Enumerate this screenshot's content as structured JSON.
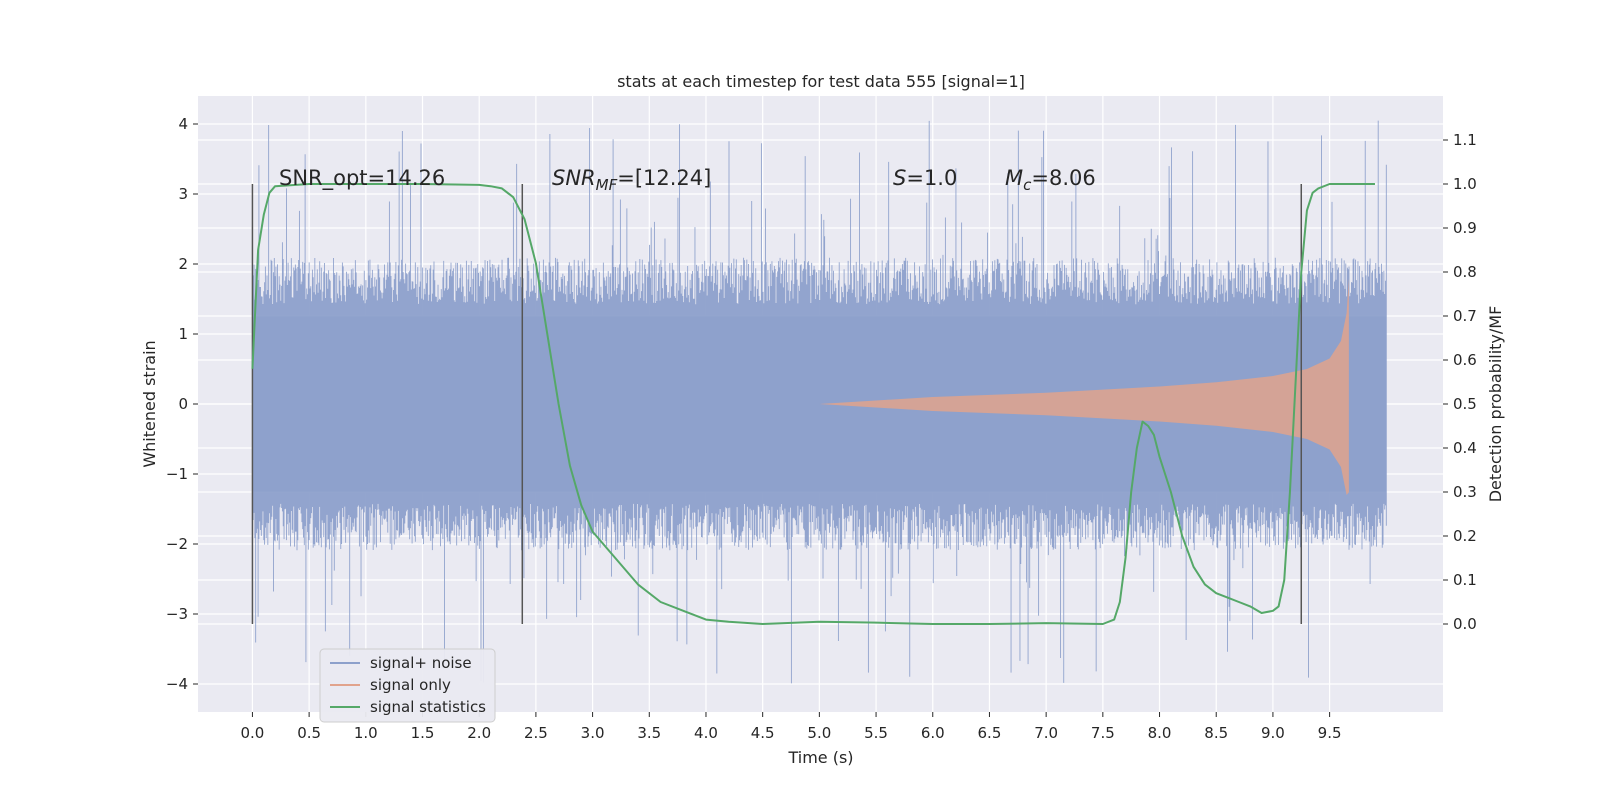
{
  "chart_data": {
    "type": "line",
    "title": "stats at each timestep for test data 555 [signal=1]",
    "xlabel": "Time (s)",
    "ylabel_left": "Whitened strain",
    "ylabel_right": "Detection probability/MF",
    "xlim": [
      -0.48,
      10.5
    ],
    "ylim_left": [
      -4.4,
      4.4
    ],
    "ylim_right": [
      -0.2,
      1.2
    ],
    "xticks": [
      "0.0",
      "0.5",
      "1.0",
      "1.5",
      "2.0",
      "2.5",
      "3.0",
      "3.5",
      "4.0",
      "4.5",
      "5.0",
      "5.5",
      "6.0",
      "6.5",
      "7.0",
      "7.5",
      "8.0",
      "8.5",
      "9.0",
      "9.5"
    ],
    "yticks_left": [
      "4",
      "3",
      "2",
      "1",
      "0",
      "−1",
      "−2",
      "−3",
      "−4"
    ],
    "yticks_right": [
      "1.1",
      "1.0",
      "0.9",
      "0.8",
      "0.7",
      "0.6",
      "0.5",
      "0.4",
      "0.3",
      "0.2",
      "0.1",
      "0.0"
    ],
    "background": "#eaeaf2",
    "grid": true,
    "legend_position": "lower-left",
    "annotations": {
      "snr_opt": "SNR_opt=14.26",
      "snr_mf_base": "SNR",
      "snr_mf_sub": "MF",
      "snr_mf_tail": "=[12.24]",
      "s_base": "S",
      "s_tail": "=1.0",
      "mc_base": "M",
      "mc_sub": "c",
      "mc_tail": "=8.06"
    },
    "vertical_lines_x": [
      0.0,
      2.38,
      9.25
    ],
    "series": [
      {
        "name": "signal+ noise",
        "color": "#8da0cb",
        "kind": "noise",
        "x_range": [
          0.0,
          10.0
        ],
        "envelope": [
          -1.9,
          1.9
        ],
        "extremes": [
          -4.05,
          4.05
        ]
      },
      {
        "name": "signal only",
        "color": "#e1a38c",
        "kind": "chirp",
        "x_range": [
          5.0,
          9.67
        ],
        "envelope_x": [
          5.0,
          6.0,
          7.0,
          8.0,
          8.5,
          9.0,
          9.3,
          9.5,
          9.6,
          9.65,
          9.67
        ],
        "envelope_y": [
          0.0,
          0.1,
          0.16,
          0.25,
          0.31,
          0.4,
          0.5,
          0.65,
          0.9,
          1.3,
          1.8
        ]
      },
      {
        "name": "signal statistics",
        "color": "#55a868",
        "kind": "line",
        "x": [
          0.0,
          0.05,
          0.1,
          0.15,
          0.2,
          0.5,
          1.0,
          1.5,
          2.0,
          2.1,
          2.2,
          2.3,
          2.4,
          2.5,
          2.6,
          2.7,
          2.8,
          2.9,
          3.0,
          3.2,
          3.4,
          3.6,
          3.8,
          4.0,
          4.2,
          4.5,
          5.0,
          5.5,
          6.0,
          6.5,
          7.0,
          7.5,
          7.6,
          7.65,
          7.7,
          7.75,
          7.8,
          7.85,
          7.9,
          7.95,
          8.0,
          8.1,
          8.2,
          8.3,
          8.4,
          8.5,
          8.6,
          8.7,
          8.8,
          8.9,
          9.0,
          9.05,
          9.1,
          9.15,
          9.2,
          9.25,
          9.3,
          9.35,
          9.4,
          9.5,
          9.7,
          9.9
        ],
        "y": [
          0.58,
          0.85,
          0.93,
          0.98,
          0.995,
          1.0,
          1.0,
          1.0,
          0.998,
          0.995,
          0.99,
          0.97,
          0.92,
          0.82,
          0.66,
          0.5,
          0.36,
          0.27,
          0.21,
          0.15,
          0.09,
          0.05,
          0.03,
          0.01,
          0.005,
          0.0,
          0.005,
          0.003,
          0.0,
          0.0,
          0.002,
          0.0,
          0.01,
          0.05,
          0.15,
          0.3,
          0.4,
          0.46,
          0.45,
          0.43,
          0.38,
          0.3,
          0.2,
          0.13,
          0.09,
          0.07,
          0.06,
          0.05,
          0.04,
          0.025,
          0.03,
          0.04,
          0.1,
          0.3,
          0.55,
          0.8,
          0.94,
          0.98,
          0.99,
          1.0,
          1.0,
          1.0
        ]
      }
    ]
  }
}
